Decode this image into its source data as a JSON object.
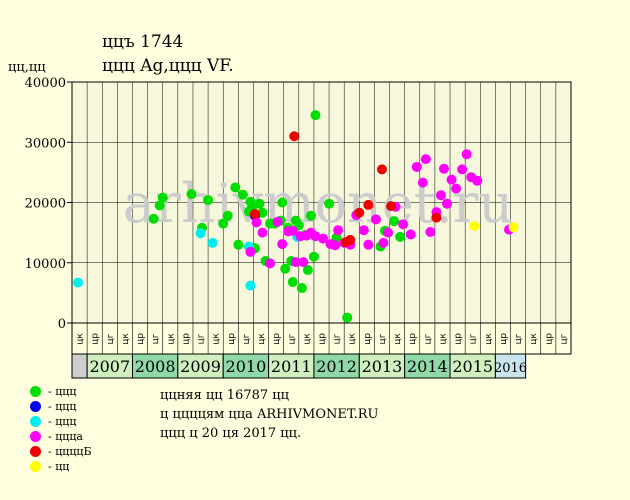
{
  "header": {
    "title": "ццъ 1744",
    "subtitle": "ццц Ag,ццц VF."
  },
  "y_axis_label": "цц,цц",
  "watermark": "arhivmonet.ru",
  "legend": [
    {
      "label": "- ццц",
      "color": "#00dd00"
    },
    {
      "label": "- ццц",
      "color": "#0000ee"
    },
    {
      "label": "- ццц",
      "color": "#00eeee"
    },
    {
      "label": "- цццa",
      "color": "#ff00ff"
    },
    {
      "label": "- ццццБ",
      "color": "#ee0000"
    },
    {
      "label": "- цц",
      "color": "#ffff00"
    }
  ],
  "notes": [
    "ццняя цц 16787 цц",
    "ц ццццям цца ARHIVMONET.RU",
    "ццц ц 20 ця 2017 цц."
  ],
  "colors": {
    "background": "#ffffe0",
    "plot_background": "#f7f7dc",
    "year_band_light": "#d0f0c0",
    "year_band_dark": "#8fd9a8",
    "year_band_last": "#c8e4ec"
  },
  "chart_data": {
    "type": "scatter",
    "ylim": [
      0,
      40000
    ],
    "y_ticks": [
      0,
      10000,
      20000,
      30000,
      40000
    ],
    "x_range": [
      0,
      48
    ],
    "grid": true,
    "quarter_labels": [
      "цк",
      "цр",
      "цг",
      "цк",
      "цр",
      "цг",
      "цк",
      "цр",
      "цг",
      "цк",
      "цр",
      "цг",
      "цк",
      "цр",
      "цг",
      "цк",
      "цр",
      "цг",
      "цк",
      "цр",
      "цг",
      "цк",
      "цр",
      "цг",
      "цк",
      "цр",
      "цг",
      "цк",
      "цр",
      "цг",
      "цк",
      "цр",
      "цг"
    ],
    "years": [
      {
        "label": "2007",
        "start": 1,
        "end": 4
      },
      {
        "label": "2008",
        "start": 4,
        "end": 7
      },
      {
        "label": "2009",
        "start": 7,
        "end": 10
      },
      {
        "label": "2010",
        "start": 10,
        "end": 13
      },
      {
        "label": "2011",
        "start": 13,
        "end": 16
      },
      {
        "label": "2012",
        "start": 16,
        "end": 19
      },
      {
        "label": "2013",
        "start": 19,
        "end": 22
      },
      {
        "label": "2014",
        "start": 22,
        "end": 25
      },
      {
        "label": "2015",
        "start": 25,
        "end": 28
      },
      {
        "label": "2016",
        "start": 28,
        "end": 30
      }
    ],
    "series": [
      {
        "color": "#00dd00",
        "points": [
          [
            5.4,
            17300
          ],
          [
            5.8,
            19500
          ],
          [
            6.0,
            20800
          ],
          [
            7.9,
            21400
          ],
          [
            8.6,
            15800
          ],
          [
            9.0,
            20400
          ],
          [
            10.0,
            16500
          ],
          [
            10.3,
            17800
          ],
          [
            10.8,
            22500
          ],
          [
            11.0,
            13000
          ],
          [
            11.3,
            21300
          ],
          [
            11.7,
            18500
          ],
          [
            11.8,
            20100
          ],
          [
            11.9,
            19100
          ],
          [
            12.1,
            12400
          ],
          [
            12.4,
            19800
          ],
          [
            12.6,
            18300
          ],
          [
            12.8,
            10300
          ],
          [
            13.1,
            16500
          ],
          [
            13.4,
            16500
          ],
          [
            13.8,
            17000
          ],
          [
            13.9,
            20000
          ],
          [
            14.1,
            9000
          ],
          [
            14.3,
            15800
          ],
          [
            14.5,
            10300
          ],
          [
            14.6,
            6800
          ],
          [
            14.8,
            17000
          ],
          [
            15.0,
            16200
          ],
          [
            15.2,
            5800
          ],
          [
            15.4,
            14600
          ],
          [
            15.6,
            8800
          ],
          [
            15.8,
            17800
          ],
          [
            16.0,
            11000
          ],
          [
            16.1,
            34500
          ],
          [
            17.0,
            19800
          ],
          [
            17.5,
            14200
          ],
          [
            18.2,
            900
          ],
          [
            20.4,
            12700
          ],
          [
            20.7,
            15300
          ],
          [
            21.3,
            16900
          ],
          [
            21.7,
            14300
          ]
        ]
      },
      {
        "color": "#0000ee",
        "points": [
          [
            12.1,
            17800
          ]
        ]
      },
      {
        "color": "#00eeee",
        "points": [
          [
            0.4,
            6700
          ],
          [
            8.5,
            14900
          ],
          [
            9.3,
            13300
          ],
          [
            11.7,
            12700
          ],
          [
            11.8,
            6200
          ],
          [
            14.9,
            14300
          ]
        ]
      },
      {
        "color": "#ff00ff",
        "points": [
          [
            11.8,
            11800
          ],
          [
            12.2,
            16700
          ],
          [
            12.6,
            15000
          ],
          [
            13.1,
            9900
          ],
          [
            13.6,
            16800
          ],
          [
            13.9,
            13100
          ],
          [
            14.3,
            15200
          ],
          [
            14.6,
            15300
          ],
          [
            14.8,
            10100
          ],
          [
            15.1,
            14400
          ],
          [
            15.3,
            10100
          ],
          [
            15.5,
            14500
          ],
          [
            15.8,
            15000
          ],
          [
            16.1,
            14400
          ],
          [
            16.6,
            14000
          ],
          [
            17.1,
            13100
          ],
          [
            17.4,
            12900
          ],
          [
            17.6,
            15400
          ],
          [
            18.0,
            13300
          ],
          [
            18.4,
            13000
          ],
          [
            18.8,
            17900
          ],
          [
            19.3,
            15400
          ],
          [
            19.6,
            13000
          ],
          [
            20.1,
            17200
          ],
          [
            20.6,
            13300
          ],
          [
            20.9,
            15000
          ],
          [
            21.4,
            19300
          ],
          [
            21.9,
            16400
          ],
          [
            22.4,
            14700
          ],
          [
            22.8,
            25900
          ],
          [
            23.2,
            23300
          ],
          [
            23.4,
            27200
          ],
          [
            23.7,
            15100
          ],
          [
            24.1,
            18400
          ],
          [
            24.4,
            21200
          ],
          [
            24.6,
            25600
          ],
          [
            24.8,
            19800
          ],
          [
            25.1,
            23800
          ],
          [
            25.4,
            22300
          ],
          [
            25.8,
            25500
          ],
          [
            26.1,
            28000
          ],
          [
            26.4,
            24200
          ],
          [
            26.8,
            23600
          ],
          [
            28.9,
            15500
          ]
        ]
      },
      {
        "color": "#ee0000",
        "points": [
          [
            12.1,
            18100
          ],
          [
            14.7,
            31000
          ],
          [
            18.1,
            13400
          ],
          [
            18.4,
            13800
          ],
          [
            19.0,
            18300
          ],
          [
            19.6,
            19600
          ],
          [
            20.5,
            25500
          ],
          [
            21.1,
            19400
          ],
          [
            24.1,
            17500
          ]
        ]
      },
      {
        "color": "#ffff00",
        "points": [
          [
            26.6,
            16100
          ],
          [
            29.2,
            15900
          ]
        ]
      }
    ]
  }
}
